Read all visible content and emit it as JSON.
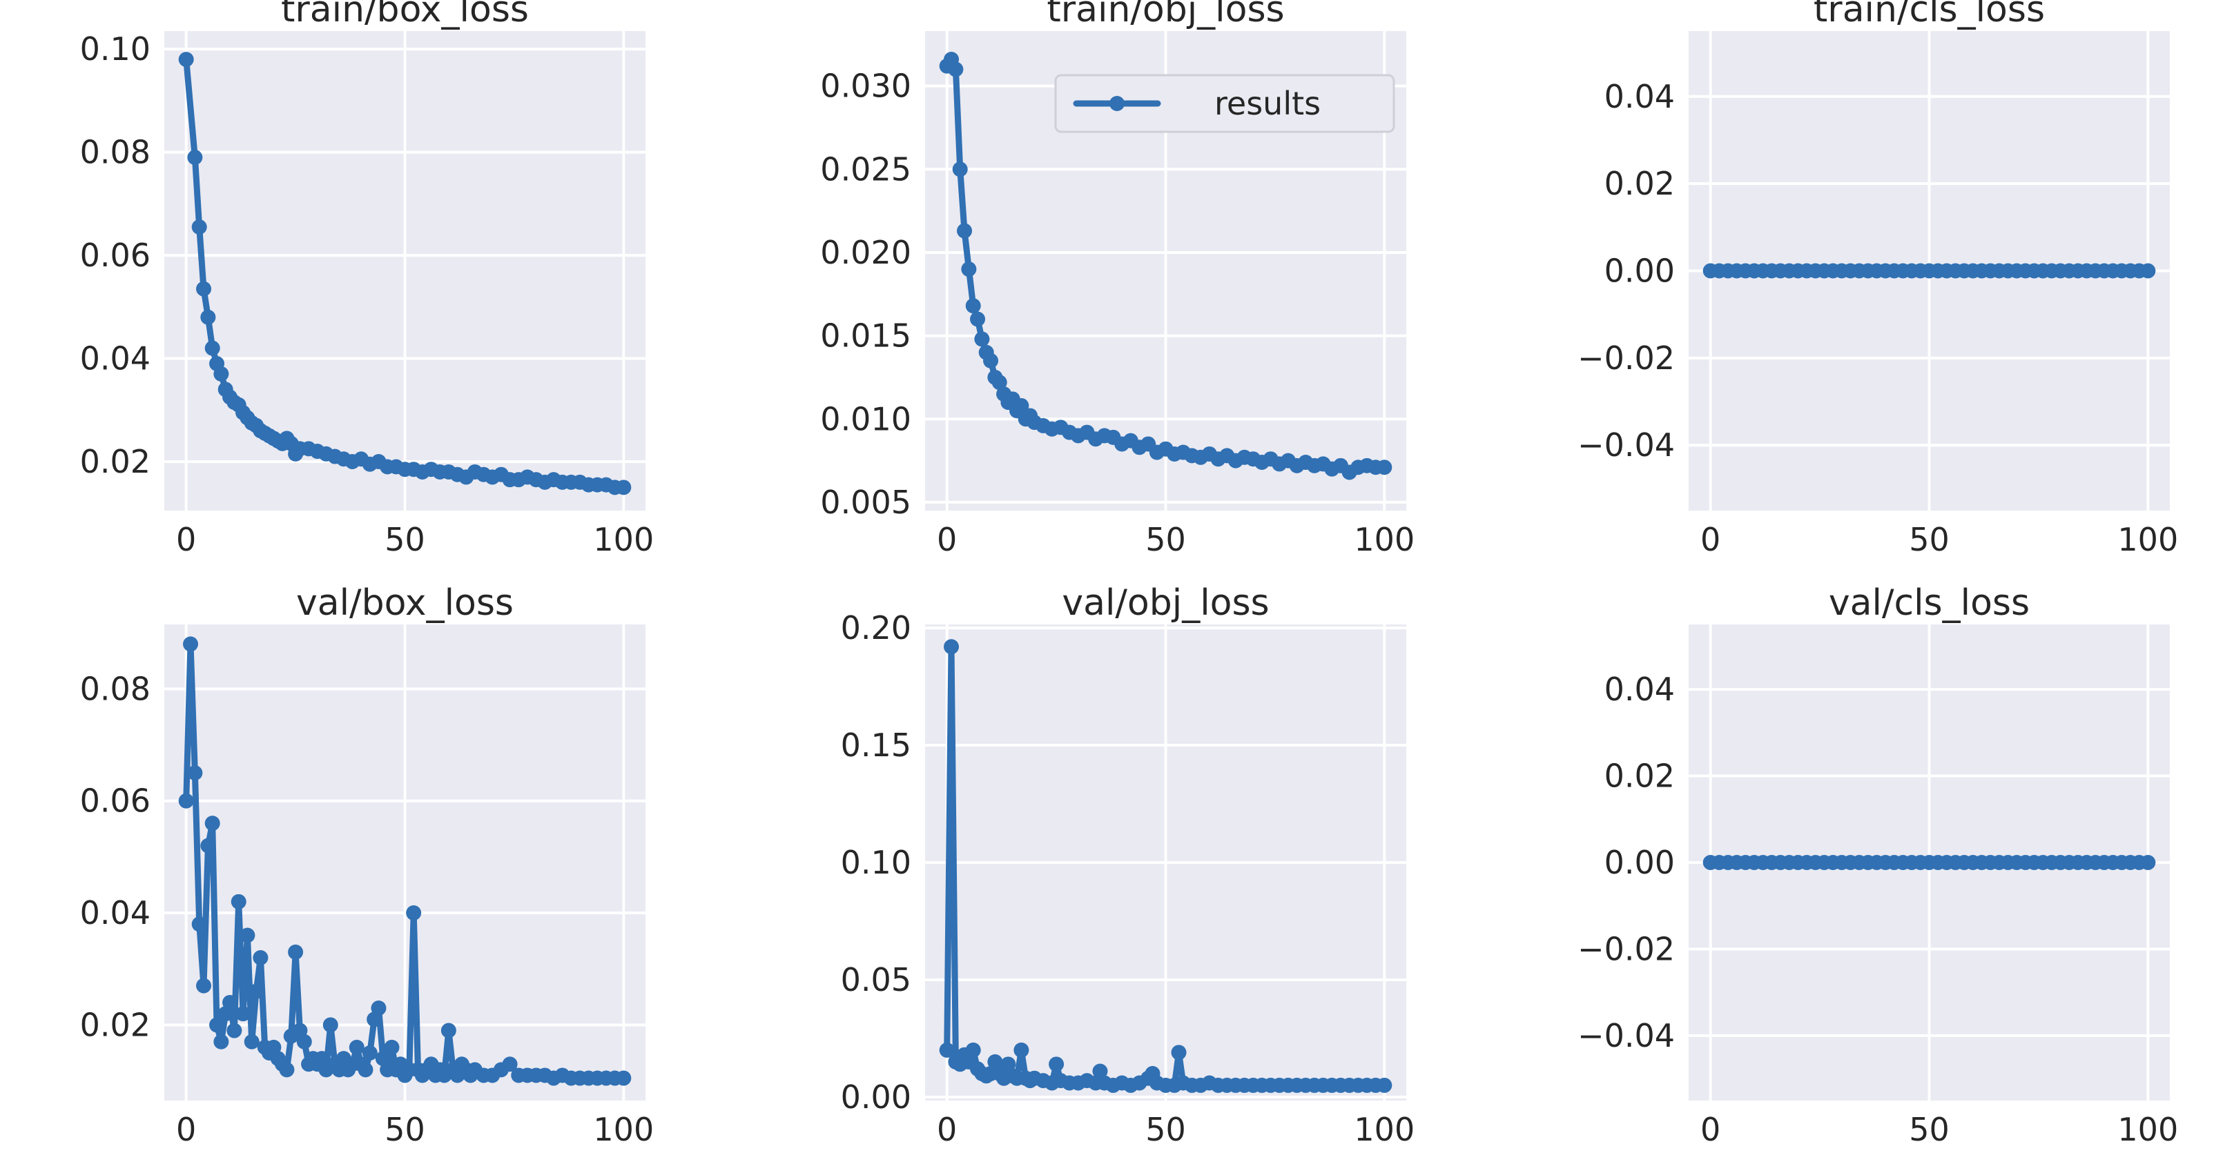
{
  "chart_data": [
    {
      "type": "line",
      "title": "train/box_loss",
      "xlim": [
        -5,
        105
      ],
      "ylim": [
        0.0105,
        0.1035
      ],
      "xticks": [
        0,
        50,
        100
      ],
      "xtick_labels": [
        "0",
        "50",
        "100"
      ],
      "yticks": [
        0.02,
        0.04,
        0.06,
        0.08,
        0.1
      ],
      "ytick_labels": [
        "0.02",
        "0.04",
        "0.06",
        "0.08",
        "0.10"
      ],
      "legend": [],
      "series": [
        {
          "name": "results",
          "x": [
            0,
            2,
            3,
            4,
            5,
            6,
            7,
            8,
            9,
            10,
            11,
            12,
            13,
            14,
            15,
            16,
            17,
            18,
            19,
            20,
            21,
            22,
            23,
            24,
            25,
            26,
            28,
            30,
            32,
            34,
            36,
            38,
            40,
            42,
            44,
            46,
            48,
            50,
            52,
            54,
            56,
            58,
            60,
            62,
            64,
            66,
            68,
            70,
            72,
            74,
            76,
            78,
            80,
            82,
            84,
            86,
            88,
            90,
            92,
            94,
            96,
            98,
            100
          ],
          "y": [
            0.098,
            0.079,
            0.0655,
            0.0535,
            0.048,
            0.042,
            0.039,
            0.037,
            0.034,
            0.0325,
            0.0315,
            0.031,
            0.0295,
            0.0285,
            0.0275,
            0.027,
            0.026,
            0.0255,
            0.025,
            0.0245,
            0.024,
            0.0235,
            0.0245,
            0.0235,
            0.0215,
            0.0225,
            0.0225,
            0.022,
            0.0215,
            0.021,
            0.0205,
            0.02,
            0.0205,
            0.0195,
            0.02,
            0.019,
            0.019,
            0.0185,
            0.0185,
            0.018,
            0.0185,
            0.018,
            0.018,
            0.0175,
            0.017,
            0.018,
            0.0175,
            0.017,
            0.0175,
            0.0165,
            0.0165,
            0.017,
            0.0165,
            0.016,
            0.0165,
            0.016,
            0.016,
            0.016,
            0.0155,
            0.0155,
            0.0155,
            0.015,
            0.015
          ]
        }
      ]
    },
    {
      "type": "line",
      "title": "train/obj_loss",
      "xlim": [
        -5,
        105
      ],
      "ylim": [
        0.0045,
        0.0333
      ],
      "xticks": [
        0,
        50,
        100
      ],
      "xtick_labels": [
        "0",
        "50",
        "100"
      ],
      "yticks": [
        0.005,
        0.01,
        0.015,
        0.02,
        0.025,
        0.03
      ],
      "ytick_labels": [
        "0.005",
        "0.010",
        "0.015",
        "0.020",
        "0.025",
        "0.030"
      ],
      "legend": [
        "results"
      ],
      "series": [
        {
          "name": "results",
          "x": [
            0,
            1,
            2,
            3,
            4,
            5,
            6,
            7,
            8,
            9,
            10,
            11,
            12,
            13,
            14,
            15,
            16,
            17,
            18,
            19,
            20,
            22,
            24,
            26,
            28,
            30,
            32,
            34,
            36,
            38,
            40,
            42,
            44,
            46,
            48,
            50,
            52,
            54,
            56,
            58,
            60,
            62,
            64,
            66,
            68,
            70,
            72,
            74,
            76,
            78,
            80,
            82,
            84,
            86,
            88,
            90,
            92,
            94,
            96,
            98,
            100
          ],
          "y": [
            0.0312,
            0.0316,
            0.031,
            0.025,
            0.0213,
            0.019,
            0.0168,
            0.016,
            0.0148,
            0.014,
            0.0135,
            0.0125,
            0.0122,
            0.0115,
            0.011,
            0.0112,
            0.0105,
            0.0108,
            0.01,
            0.0102,
            0.0098,
            0.0096,
            0.0094,
            0.0095,
            0.0092,
            0.009,
            0.0092,
            0.0088,
            0.009,
            0.0089,
            0.0085,
            0.0087,
            0.0083,
            0.0085,
            0.008,
            0.0082,
            0.0079,
            0.008,
            0.0078,
            0.0077,
            0.0079,
            0.0076,
            0.0078,
            0.0075,
            0.0077,
            0.0076,
            0.0074,
            0.0076,
            0.0073,
            0.0075,
            0.0072,
            0.0074,
            0.0072,
            0.0073,
            0.007,
            0.0072,
            0.0068,
            0.0071,
            0.0072,
            0.0071,
            0.0071
          ]
        }
      ]
    },
    {
      "type": "line",
      "title": "train/cls_loss",
      "xlim": [
        -5,
        105
      ],
      "ylim": [
        -0.055,
        0.055
      ],
      "xticks": [
        0,
        50,
        100
      ],
      "xtick_labels": [
        "0",
        "50",
        "100"
      ],
      "yticks": [
        -0.04,
        -0.02,
        0.0,
        0.02,
        0.04
      ],
      "ytick_labels": [
        "−0.04",
        "−0.02",
        "0.00",
        "0.02",
        "0.04"
      ],
      "legend": [],
      "series": [
        {
          "name": "results",
          "x": [
            0,
            2,
            4,
            6,
            8,
            10,
            12,
            14,
            16,
            18,
            20,
            22,
            24,
            26,
            28,
            30,
            32,
            34,
            36,
            38,
            40,
            42,
            44,
            46,
            48,
            50,
            52,
            54,
            56,
            58,
            60,
            62,
            64,
            66,
            68,
            70,
            72,
            74,
            76,
            78,
            80,
            82,
            84,
            86,
            88,
            90,
            92,
            94,
            96,
            98,
            100
          ],
          "y": [
            0,
            0,
            0,
            0,
            0,
            0,
            0,
            0,
            0,
            0,
            0,
            0,
            0,
            0,
            0,
            0,
            0,
            0,
            0,
            0,
            0,
            0,
            0,
            0,
            0,
            0,
            0,
            0,
            0,
            0,
            0,
            0,
            0,
            0,
            0,
            0,
            0,
            0,
            0,
            0,
            0,
            0,
            0,
            0,
            0,
            0,
            0,
            0,
            0,
            0,
            0
          ]
        }
      ]
    },
    {
      "type": "line",
      "title": "val/box_loss",
      "xlim": [
        -5,
        105
      ],
      "ylim": [
        0.0065,
        0.0915
      ],
      "xticks": [
        0,
        50,
        100
      ],
      "xtick_labels": [
        "0",
        "50",
        "100"
      ],
      "yticks": [
        0.02,
        0.04,
        0.06,
        0.08
      ],
      "ytick_labels": [
        "0.02",
        "0.04",
        "0.06",
        "0.08"
      ],
      "legend": [],
      "series": [
        {
          "name": "results",
          "x": [
            0,
            1,
            2,
            3,
            4,
            5,
            6,
            7,
            8,
            9,
            10,
            11,
            12,
            13,
            14,
            15,
            16,
            17,
            18,
            19,
            20,
            21,
            22,
            23,
            24,
            25,
            26,
            27,
            28,
            29,
            30,
            31,
            32,
            33,
            34,
            35,
            36,
            37,
            38,
            39,
            40,
            41,
            42,
            43,
            44,
            45,
            46,
            47,
            48,
            49,
            50,
            51,
            52,
            53,
            54,
            55,
            56,
            57,
            58,
            59,
            60,
            61,
            62,
            63,
            64,
            65,
            66,
            68,
            70,
            72,
            74,
            76,
            78,
            80,
            82,
            84,
            86,
            88,
            90,
            92,
            94,
            96,
            98,
            100
          ],
          "y": [
            0.06,
            0.088,
            0.065,
            0.038,
            0.027,
            0.052,
            0.056,
            0.02,
            0.017,
            0.022,
            0.024,
            0.019,
            0.042,
            0.022,
            0.036,
            0.017,
            0.026,
            0.032,
            0.016,
            0.015,
            0.016,
            0.014,
            0.013,
            0.012,
            0.018,
            0.033,
            0.019,
            0.017,
            0.013,
            0.014,
            0.013,
            0.014,
            0.012,
            0.02,
            0.013,
            0.012,
            0.014,
            0.012,
            0.013,
            0.016,
            0.013,
            0.012,
            0.015,
            0.021,
            0.023,
            0.014,
            0.012,
            0.016,
            0.012,
            0.013,
            0.011,
            0.012,
            0.04,
            0.012,
            0.011,
            0.012,
            0.013,
            0.011,
            0.012,
            0.011,
            0.019,
            0.012,
            0.011,
            0.013,
            0.012,
            0.011,
            0.012,
            0.011,
            0.011,
            0.012,
            0.013,
            0.011,
            0.011,
            0.011,
            0.011,
            0.0105,
            0.011,
            0.0105,
            0.0105,
            0.0105,
            0.0105,
            0.0105,
            0.0105,
            0.0105
          ]
        }
      ]
    },
    {
      "type": "line",
      "title": "val/obj_loss",
      "xlim": [
        -5,
        105
      ],
      "ylim": [
        -0.0015,
        0.2015
      ],
      "xticks": [
        0,
        50,
        100
      ],
      "xtick_labels": [
        "0",
        "50",
        "100"
      ],
      "yticks": [
        0.0,
        0.05,
        0.1,
        0.15,
        0.2
      ],
      "ytick_labels": [
        "0.00",
        "0.05",
        "0.10",
        "0.15",
        "0.20"
      ],
      "legend": [],
      "series": [
        {
          "name": "results",
          "x": [
            0,
            1,
            2,
            3,
            4,
            5,
            6,
            7,
            8,
            9,
            10,
            11,
            12,
            13,
            14,
            15,
            16,
            17,
            18,
            19,
            20,
            22,
            24,
            25,
            26,
            28,
            30,
            32,
            34,
            35,
            36,
            38,
            40,
            42,
            44,
            46,
            47,
            48,
            50,
            52,
            53,
            54,
            56,
            58,
            60,
            62,
            64,
            66,
            68,
            70,
            72,
            74,
            76,
            78,
            80,
            82,
            84,
            86,
            88,
            90,
            92,
            94,
            96,
            98,
            100
          ],
          "y": [
            0.02,
            0.192,
            0.015,
            0.014,
            0.018,
            0.015,
            0.02,
            0.012,
            0.01,
            0.009,
            0.01,
            0.015,
            0.01,
            0.008,
            0.014,
            0.009,
            0.008,
            0.02,
            0.008,
            0.007,
            0.008,
            0.007,
            0.006,
            0.014,
            0.007,
            0.006,
            0.006,
            0.007,
            0.006,
            0.011,
            0.006,
            0.005,
            0.006,
            0.005,
            0.006,
            0.008,
            0.01,
            0.006,
            0.005,
            0.005,
            0.019,
            0.006,
            0.005,
            0.005,
            0.006,
            0.005,
            0.005,
            0.005,
            0.005,
            0.005,
            0.005,
            0.005,
            0.005,
            0.005,
            0.005,
            0.005,
            0.005,
            0.005,
            0.005,
            0.005,
            0.005,
            0.005,
            0.005,
            0.005,
            0.005
          ]
        }
      ]
    },
    {
      "type": "line",
      "title": "val/cls_loss",
      "xlim": [
        -5,
        105
      ],
      "ylim": [
        -0.055,
        0.055
      ],
      "xticks": [
        0,
        50,
        100
      ],
      "xtick_labels": [
        "0",
        "50",
        "100"
      ],
      "yticks": [
        -0.04,
        -0.02,
        0.0,
        0.02,
        0.04
      ],
      "ytick_labels": [
        "−0.04",
        "−0.02",
        "0.00",
        "0.02",
        "0.04"
      ],
      "legend": [],
      "series": [
        {
          "name": "results",
          "x": [
            0,
            2,
            4,
            6,
            8,
            10,
            12,
            14,
            16,
            18,
            20,
            22,
            24,
            26,
            28,
            30,
            32,
            34,
            36,
            38,
            40,
            42,
            44,
            46,
            48,
            50,
            52,
            54,
            56,
            58,
            60,
            62,
            64,
            66,
            68,
            70,
            72,
            74,
            76,
            78,
            80,
            82,
            84,
            86,
            88,
            90,
            92,
            94,
            96,
            98,
            100
          ],
          "y": [
            0,
            0,
            0,
            0,
            0,
            0,
            0,
            0,
            0,
            0,
            0,
            0,
            0,
            0,
            0,
            0,
            0,
            0,
            0,
            0,
            0,
            0,
            0,
            0,
            0,
            0,
            0,
            0,
            0,
            0,
            0,
            0,
            0,
            0,
            0,
            0,
            0,
            0,
            0,
            0,
            0,
            0,
            0,
            0,
            0,
            0,
            0,
            0,
            0,
            0,
            0
          ]
        }
      ]
    }
  ],
  "colors": {
    "series": "#3070b3",
    "plot_bg": "#eaeaf2",
    "grid": "#ffffff",
    "text": "#262626"
  }
}
